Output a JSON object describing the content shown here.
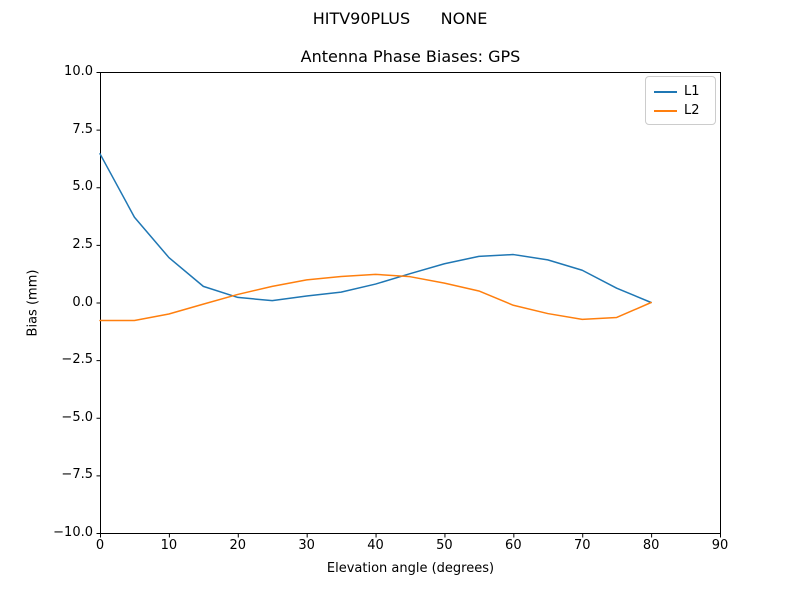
{
  "figure": {
    "suptitle": "HITV90PLUS      NONE",
    "title": "Antenna Phase Biases: GPS"
  },
  "chart_data": {
    "type": "line",
    "suptitle": "HITV90PLUS      NONE",
    "title": "Antenna Phase Biases: GPS",
    "xlabel": "Elevation angle (degrees)",
    "ylabel": "Bias (mm)",
    "xlim": [
      0,
      90
    ],
    "ylim": [
      -10,
      10
    ],
    "xtick_values": [
      0,
      10,
      20,
      30,
      40,
      50,
      60,
      70,
      80,
      90
    ],
    "xtick_labels": [
      "0",
      "10",
      "20",
      "30",
      "40",
      "50",
      "60",
      "70",
      "80",
      "90"
    ],
    "ytick_values": [
      -10,
      -7.5,
      -5,
      -2.5,
      0,
      2.5,
      5,
      7.5,
      10
    ],
    "ytick_labels": [
      "−10.0",
      "−7.5",
      "−5.0",
      "−2.5",
      "0.0",
      "2.5",
      "5.0",
      "7.5",
      "10.0"
    ],
    "grid": false,
    "legend": {
      "position": "upper right",
      "entries": [
        "L1",
        "L2"
      ]
    },
    "x": [
      0,
      5,
      10,
      15,
      20,
      25,
      30,
      35,
      40,
      45,
      50,
      55,
      60,
      65,
      70,
      75,
      80
    ],
    "series": [
      {
        "name": "L1",
        "color": "#1f77b4",
        "values": [
          6.45,
          3.7,
          1.95,
          0.7,
          0.22,
          0.08,
          0.28,
          0.45,
          0.8,
          1.25,
          1.68,
          2.0,
          2.08,
          1.85,
          1.4,
          0.62,
          0.0
        ]
      },
      {
        "name": "L2",
        "color": "#ff7f0e",
        "values": [
          -0.78,
          -0.78,
          -0.5,
          -0.07,
          0.35,
          0.7,
          0.98,
          1.13,
          1.22,
          1.12,
          0.84,
          0.5,
          -0.12,
          -0.48,
          -0.73,
          -0.65,
          0.0
        ]
      }
    ],
    "axis_color": "#000000",
    "background": "#ffffff"
  }
}
